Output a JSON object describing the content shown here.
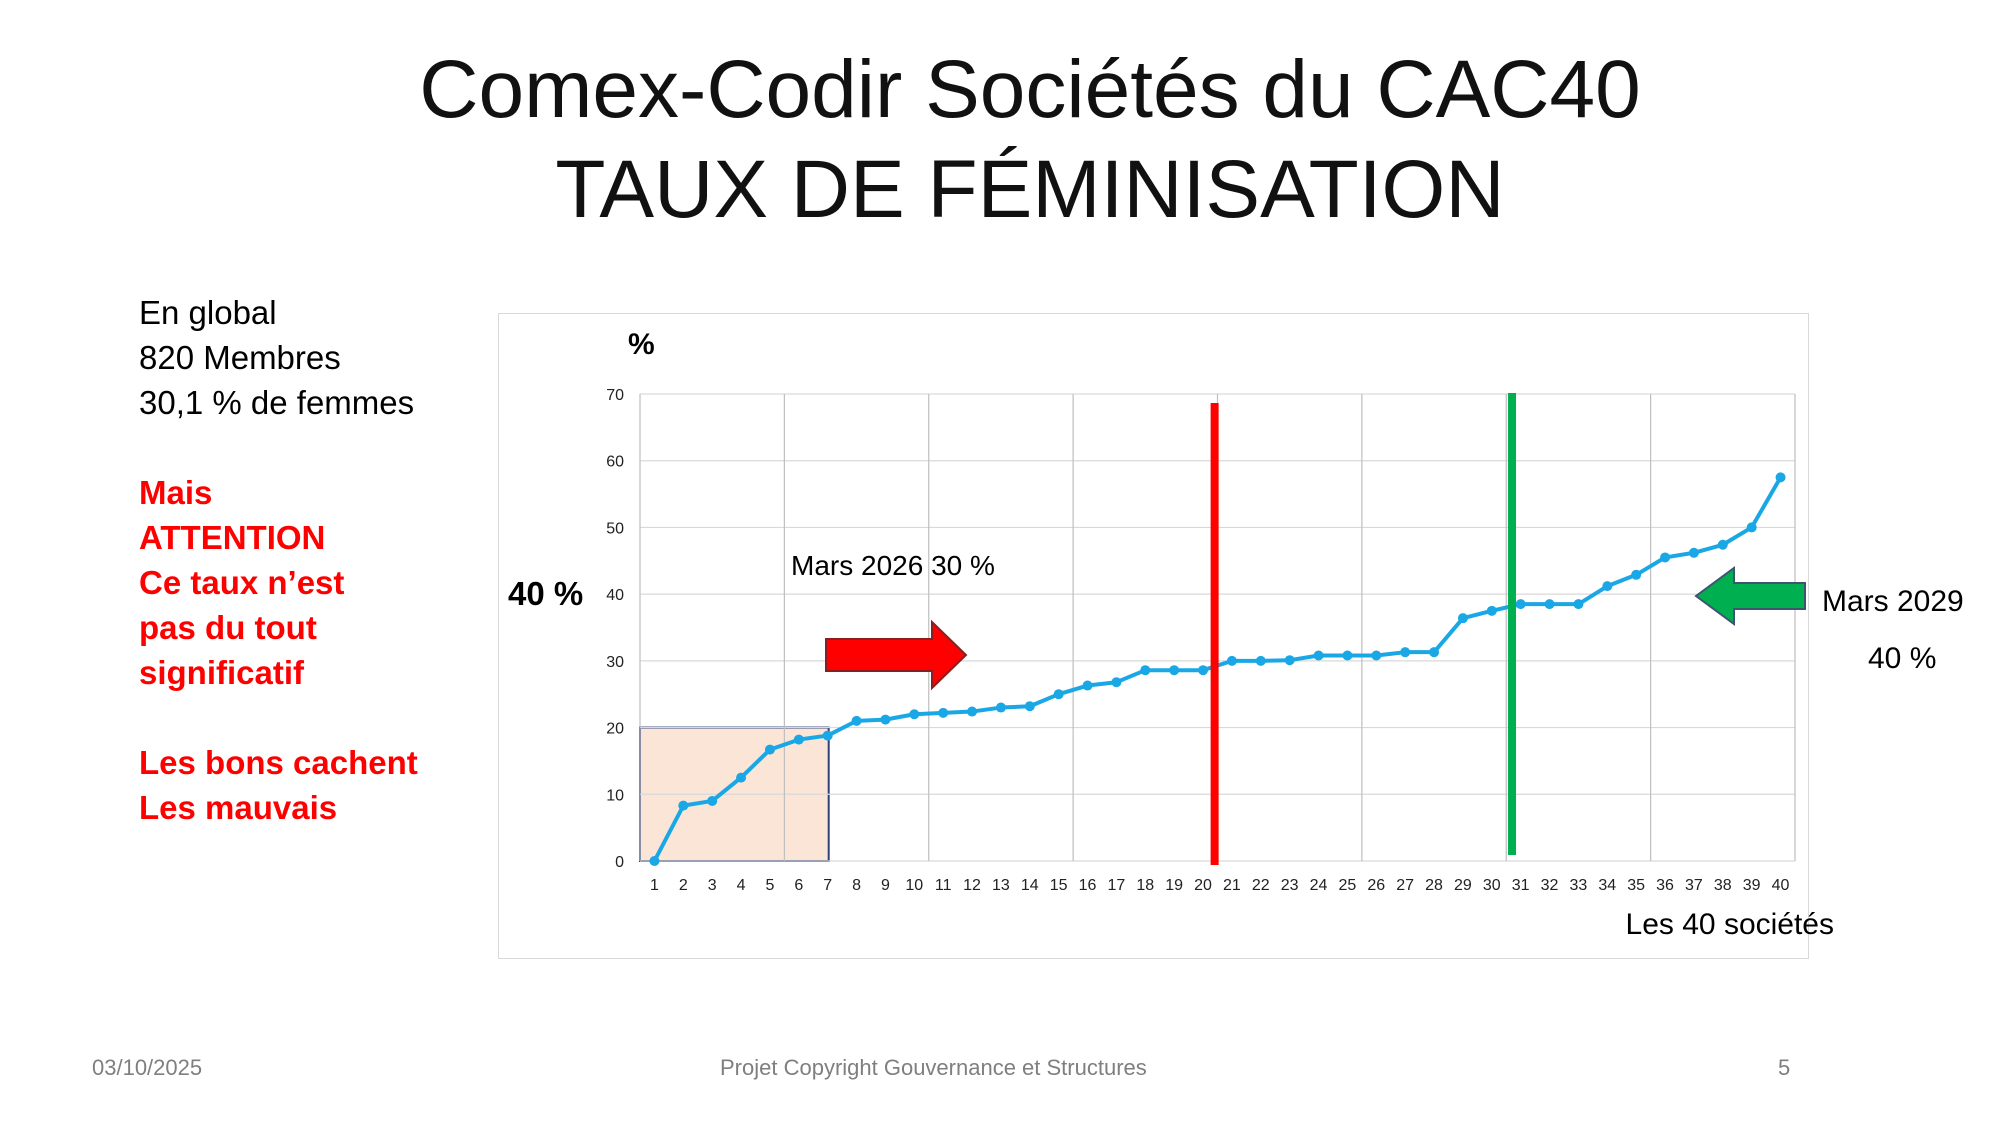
{
  "slide": {
    "title_line1": "Comex-Codir Sociétés du CAC40",
    "title_line2": "TAUX DE FÉMINISATION"
  },
  "sidebar": {
    "lines_black": [
      "En global",
      "820 Membres",
      "30,1 % de femmes"
    ],
    "lines_red_a": [
      "Mais",
      "ATTENTION",
      "Ce taux n’est",
      "pas du tout",
      "significatif"
    ],
    "lines_red_b": [
      "Les bons cachent",
      "Les mauvais"
    ],
    "red_color": "#ff0000"
  },
  "annotations": {
    "y_unit": "%",
    "left_40": "40 %",
    "mars2026": "Mars 2026 30 %",
    "mars2029": "Mars 2029",
    "mars2029_pct": "40 %",
    "xlabel": "Les 40 sociétés",
    "red_line_color": "#ff0000",
    "green_line_color": "#00b050",
    "highlight_fill": "#fbe5d6",
    "highlight_border": "#2f3f7a"
  },
  "footer": {
    "date": "03/10/2025",
    "center": "Projet Copyright Gouvernance et Structures",
    "page": "5"
  },
  "chart_data": {
    "type": "line",
    "x": [
      1,
      2,
      3,
      4,
      5,
      6,
      7,
      8,
      9,
      10,
      11,
      12,
      13,
      14,
      15,
      16,
      17,
      18,
      19,
      20,
      21,
      22,
      23,
      24,
      25,
      26,
      27,
      28,
      29,
      30,
      31,
      32,
      33,
      34,
      35,
      36,
      37,
      38,
      39,
      40
    ],
    "series": [
      {
        "values": [
          0,
          8.3,
          9,
          12.5,
          16.7,
          18.2,
          18.8,
          21,
          21.2,
          22,
          22.2,
          22.4,
          23,
          23.2,
          25,
          26.3,
          26.8,
          28.6,
          28.6,
          28.6,
          30,
          30,
          30.1,
          30.8,
          30.8,
          30.8,
          31.3,
          31.3,
          36.4,
          37.5,
          38.5,
          38.5,
          38.5,
          41.2,
          42.9,
          45.5,
          46.2,
          47.4,
          50,
          57.5
        ],
        "color": "#1aa7e6"
      }
    ],
    "xlabel": "Les 40 sociétés",
    "ylabel": "%",
    "ylim": [
      0,
      70
    ],
    "yticks": [
      0,
      10,
      20,
      30,
      40,
      50,
      60,
      70
    ],
    "grid": true,
    "highlight_range": [
      1,
      7
    ],
    "highlight_y_max": 20,
    "vertical_markers": [
      {
        "x": 20.4,
        "label": "Mars 2026 30 %",
        "color": "#ff0000"
      },
      {
        "x": 30.7,
        "label": "Mars 2029 40 %",
        "color": "#00b050"
      }
    ]
  }
}
